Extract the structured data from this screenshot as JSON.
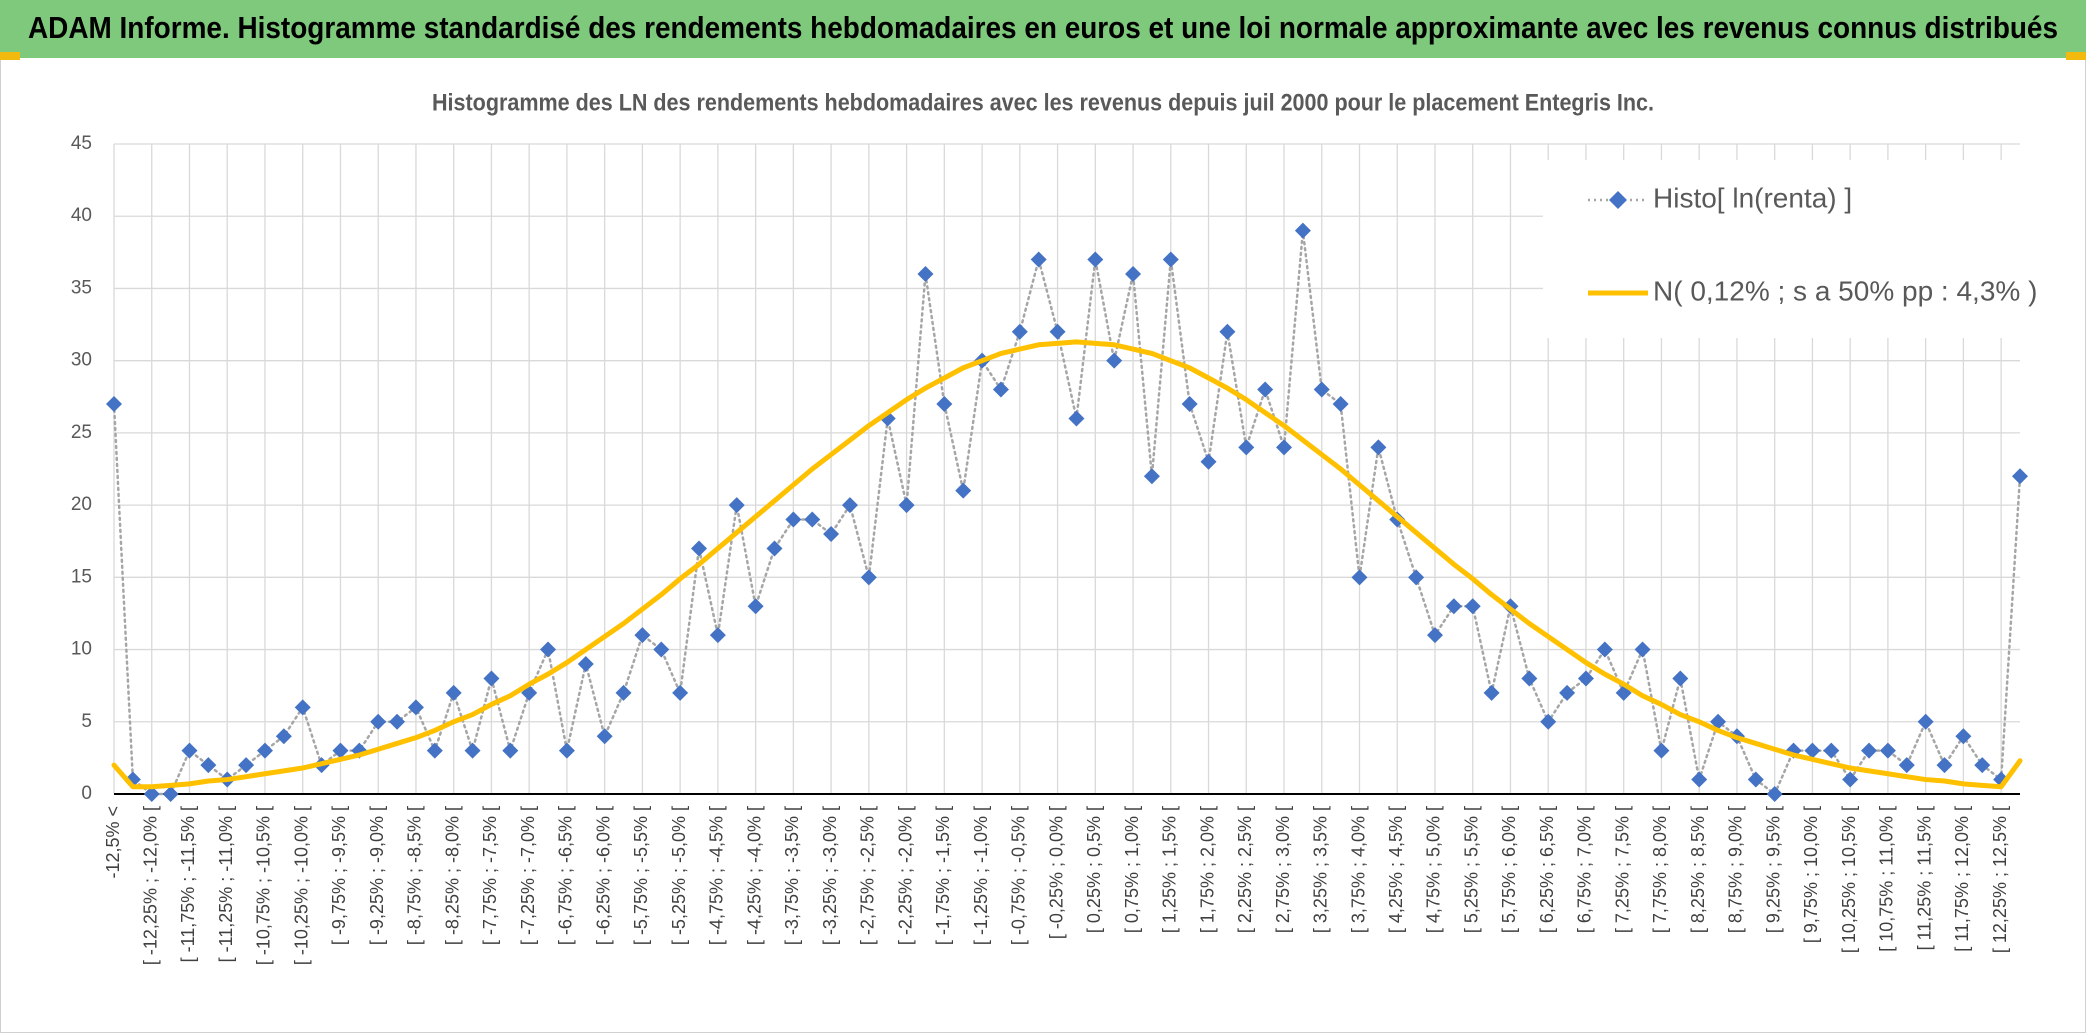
{
  "header": {
    "title": "ADAM Informe. Histogramme standardisé des rendements hebdomadaires en euros et une loi normale approximante avec les revenus connus distribués"
  },
  "chart_data": {
    "type": "line",
    "title": "Histogramme des LN des rendements hebdomadaires avec les revenus depuis juil 2000 pour le placement Entegris Inc.",
    "categories": [
      "-12,5% <",
      null,
      "[ -12,25% ; -12,0% [",
      null,
      "[ -11,75% ; -11,5% [",
      null,
      "[ -11,25% ; -11,0% [",
      null,
      "[ -10,75% ; -10,5% [",
      null,
      "[ -10,25% ; -10,0% [",
      null,
      "[ -9,75% ; -9,5% [",
      null,
      "[ -9,25% ; -9,0% [",
      null,
      "[ -8,75% ; -8,5% [",
      null,
      "[ -8,25% ; -8,0% [",
      null,
      "[ -7,75% ; -7,5% [",
      null,
      "[ -7,25% ; -7,0% [",
      null,
      "[ -6,75% ; -6,5% [",
      null,
      "[ -6,25% ; -6,0% [",
      null,
      "[ -5,75% ; -5,5% [",
      null,
      "[ -5,25% ; -5,0% [",
      null,
      "[ -4,75% ; -4,5% [",
      null,
      "[ -4,25% ; -4,0% [",
      null,
      "[ -3,75% ; -3,5% [",
      null,
      "[ -3,25% ; -3,0% [",
      null,
      "[ -2,75% ; -2,5% [",
      null,
      "[ -2,25% ; -2,0% [",
      null,
      "[ -1,75% ; -1,5% [",
      null,
      "[ -1,25% ; -1,0% [",
      null,
      "[ -0,75% ; -0,5% [",
      null,
      "[ -0,25% ; 0,0% [",
      null,
      "[ 0,25% ; 0,5% [",
      null,
      "[ 0,75% ; 1,0% [",
      null,
      "[ 1,25% ; 1,5% [",
      null,
      "[ 1,75% ; 2,0% [",
      null,
      "[ 2,25% ; 2,5% [",
      null,
      "[ 2,75% ; 3,0% [",
      null,
      "[ 3,25% ; 3,5% [",
      null,
      "[ 3,75% ; 4,0% [",
      null,
      "[ 4,25% ; 4,5% [",
      null,
      "[ 4,75% ; 5,0% [",
      null,
      "[ 5,25% ; 5,5% [",
      null,
      "[ 5,75% ; 6,0% [",
      null,
      "[ 6,25% ; 6,5% [",
      null,
      "[ 6,75% ; 7,0% [",
      null,
      "[ 7,25% ; 7,5% [",
      null,
      "[ 7,75% ; 8,0% [",
      null,
      "[ 8,25% ; 8,5% [",
      null,
      "[ 8,75% ; 9,0% [",
      null,
      "[ 9,25% ; 9,5% [",
      null,
      "[ 9,75% ; 10,0% [",
      null,
      "[ 10,25% ; 10,5% [",
      null,
      "[ 10,75% ; 11,0% [",
      null,
      "[ 11,25% ; 11,5% [",
      null,
      "[ 11,75% ; 12,0% [",
      null,
      "[ 12,25% ; 12,5% [",
      null
    ],
    "series": [
      {
        "name": "Histo[ ln(renta) ]",
        "color": "#4472c4",
        "line_color": "#a6a6a6",
        "line_style": "dotted",
        "marker": "diamond",
        "values": [
          27,
          1,
          0,
          0,
          3,
          2,
          1,
          2,
          3,
          4,
          6,
          2,
          3,
          3,
          5,
          5,
          6,
          3,
          7,
          3,
          8,
          3,
          7,
          10,
          3,
          9,
          4,
          7,
          11,
          10,
          7,
          17,
          11,
          20,
          13,
          17,
          19,
          19,
          18,
          20,
          15,
          26,
          20,
          36,
          27,
          21,
          30,
          28,
          32,
          37,
          32,
          26,
          37,
          30,
          36,
          22,
          37,
          27,
          23,
          32,
          24,
          28,
          24,
          39,
          28,
          27,
          15,
          24,
          19,
          15,
          11,
          13,
          13,
          7,
          13,
          8,
          5,
          7,
          8,
          10,
          7,
          10,
          3,
          8,
          1,
          5,
          4,
          1,
          0,
          3,
          3,
          3,
          1,
          3,
          3,
          2,
          5,
          2,
          4,
          2,
          1,
          22
        ]
      },
      {
        "name": "N( 0,12% ; s a 50% pp : 4,3% )",
        "color": "#ffc000",
        "line_color": "#ffc000",
        "line_style": "solid",
        "marker": "none",
        "values": [
          2.0,
          0.5,
          0.5,
          0.6,
          0.7,
          0.9,
          1.0,
          1.2,
          1.4,
          1.6,
          1.8,
          2.1,
          2.4,
          2.7,
          3.1,
          3.5,
          3.9,
          4.4,
          5.0,
          5.5,
          6.2,
          6.8,
          7.6,
          8.3,
          9.1,
          10.0,
          10.9,
          11.8,
          12.8,
          13.8,
          14.9,
          15.9,
          17.0,
          18.1,
          19.2,
          20.3,
          21.4,
          22.5,
          23.5,
          24.5,
          25.5,
          26.4,
          27.3,
          28.1,
          28.8,
          29.5,
          30.0,
          30.5,
          30.8,
          31.1,
          31.2,
          31.3,
          31.2,
          31.1,
          30.8,
          30.5,
          30.0,
          29.5,
          28.8,
          28.1,
          27.3,
          26.4,
          25.5,
          24.5,
          23.5,
          22.5,
          21.4,
          20.3,
          19.2,
          18.1,
          17.0,
          15.9,
          14.9,
          13.8,
          12.8,
          11.8,
          10.9,
          10.0,
          9.1,
          8.3,
          7.6,
          6.8,
          6.2,
          5.5,
          5.0,
          4.4,
          3.9,
          3.5,
          3.1,
          2.7,
          2.4,
          2.1,
          1.8,
          1.6,
          1.4,
          1.2,
          1.0,
          0.9,
          0.7,
          0.6,
          0.5,
          2.3
        ]
      }
    ],
    "ylim": [
      0,
      45
    ],
    "yticks": [
      0,
      5,
      10,
      15,
      20,
      25,
      30,
      35,
      40,
      45
    ],
    "grid": true,
    "legend": "top-right"
  }
}
